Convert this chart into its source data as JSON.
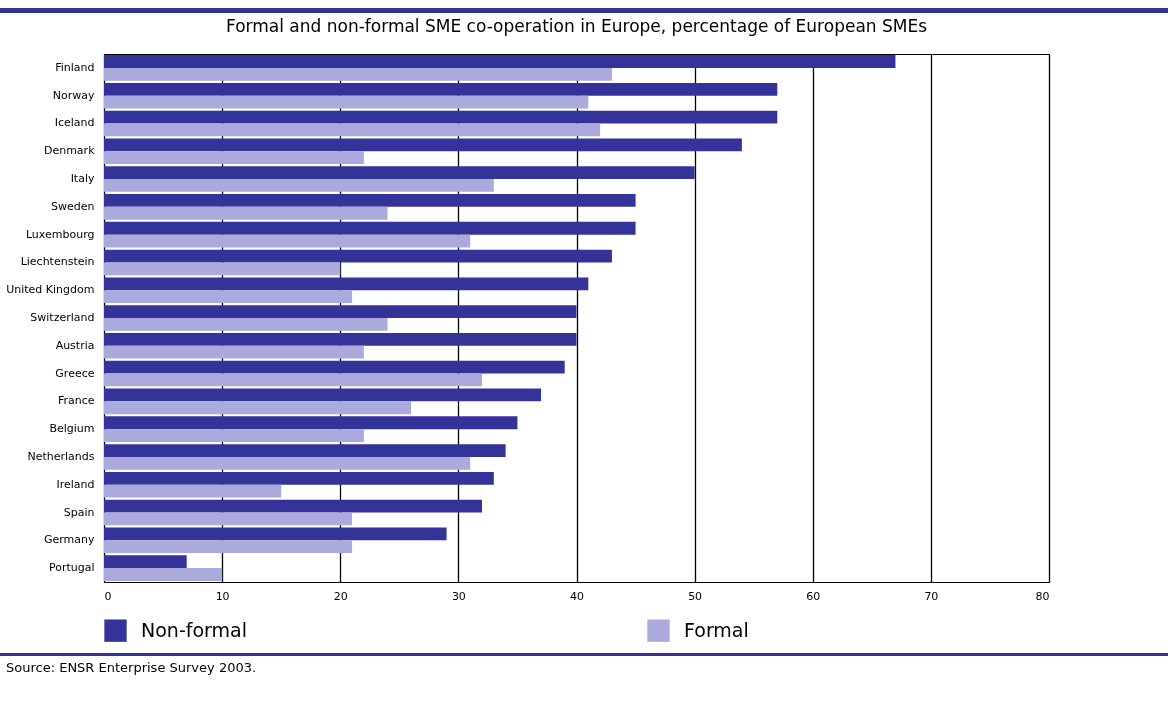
{
  "chart_data": {
    "type": "bar",
    "title": "Formal and non-formal SME co-operation in Europe, percentage of European SMEs",
    "orientation": "horizontal",
    "categories": [
      "Finland",
      "Norway",
      "Iceland",
      "Denmark",
      "Italy",
      "Sweden",
      "Luxembourg",
      "Liechtenstein",
      "United Kingdom",
      "Switzerland",
      "Austria",
      "Greece",
      "France",
      "Belgium",
      "Netherlands",
      "Ireland",
      "Spain",
      "Germany",
      "Portugal"
    ],
    "series": [
      {
        "name": "Non-formal",
        "color": "#333399",
        "values": [
          67,
          57,
          57,
          54,
          50,
          45,
          45,
          43,
          41,
          40,
          40,
          39,
          37,
          35,
          34,
          33,
          32,
          29,
          7
        ]
      },
      {
        "name": "Formal",
        "color": "#aaaadd",
        "values": [
          43,
          41,
          42,
          22,
          33,
          24,
          31,
          20,
          21,
          24,
          22,
          32,
          26,
          22,
          31,
          15,
          21,
          21,
          10
        ]
      }
    ],
    "xlim": [
      0,
      80
    ],
    "xticks": [
      0,
      10,
      20,
      30,
      40,
      50,
      60,
      70,
      80
    ],
    "grid": "x",
    "legend": "bottom",
    "annotations": [
      "Source: ENSR Enterprise Survey 2003."
    ]
  }
}
